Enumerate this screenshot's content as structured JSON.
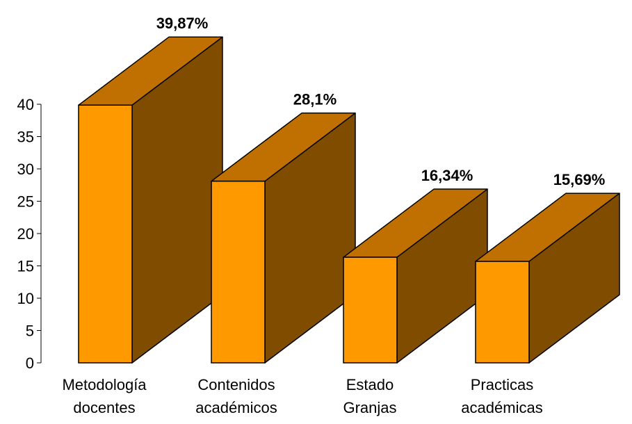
{
  "chart_data": {
    "type": "bar",
    "categories": [
      [
        "Metodología",
        "docentes"
      ],
      [
        "Contenidos",
        "académicos"
      ],
      [
        "Estado",
        "Granjas"
      ],
      [
        "Practicas",
        "académicas"
      ]
    ],
    "values": [
      39.87,
      28.1,
      16.34,
      15.69
    ],
    "data_labels": [
      "39,87%",
      "28,1%",
      "16,34%",
      "15,69%"
    ],
    "y_ticks": [
      0,
      5,
      10,
      15,
      20,
      25,
      30,
      35,
      40
    ],
    "ylim": [
      0,
      40
    ],
    "grid": false,
    "legend": "none",
    "style": "3d-bar",
    "colors": {
      "front": "#FF9900",
      "top": "#C07000",
      "side": "#7F4C00",
      "outline": "#000000"
    }
  }
}
